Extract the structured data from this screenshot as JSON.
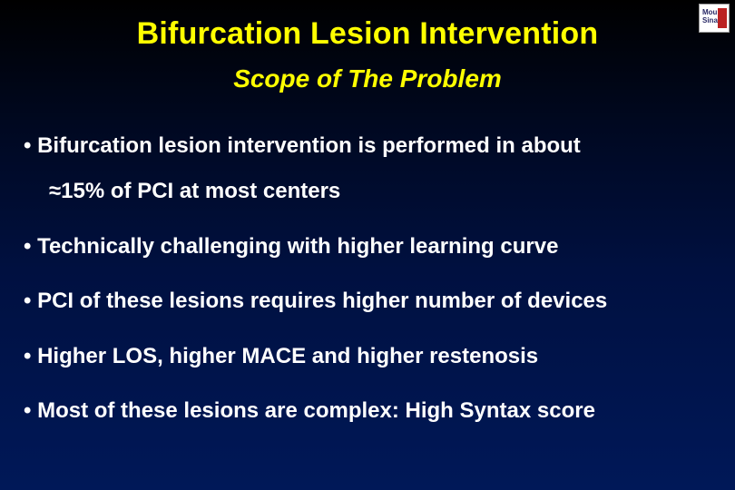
{
  "slide": {
    "background": {
      "gradient_top": "#000000",
      "gradient_bottom": "#001858",
      "type": "linear-vertical"
    },
    "title": {
      "text": "Bifurcation Lesion Intervention",
      "color": "#ffff00",
      "font_size_pt": 26,
      "font_weight": "bold",
      "align": "center"
    },
    "subtitle": {
      "text": "Scope of The Problem",
      "color": "#ffff00",
      "font_size_pt": 21,
      "font_weight": "bold",
      "font_style": "italic",
      "align": "center"
    },
    "bullets": {
      "text_color": "#ffffff",
      "font_size_pt": 18,
      "font_weight": "bold",
      "marker": "•",
      "items": [
        {
          "line1": "• Bifurcation lesion intervention is performed in  about",
          "line2": "≈15% of PCI at most centers"
        },
        {
          "line1": "• Technically challenging with higher learning curve"
        },
        {
          "line1": "• PCI of these lesions requires higher number of devices"
        },
        {
          "line1": "• Higher LOS, higher MACE and higher restenosis"
        },
        {
          "line1": "• Most of these lesions are complex: High Syntax score"
        }
      ]
    },
    "logo": {
      "line1": "Mount",
      "line2": "Sinai",
      "bg": "#ffffff",
      "text_color": "#2a2a66",
      "accent": "#bb2222"
    }
  }
}
